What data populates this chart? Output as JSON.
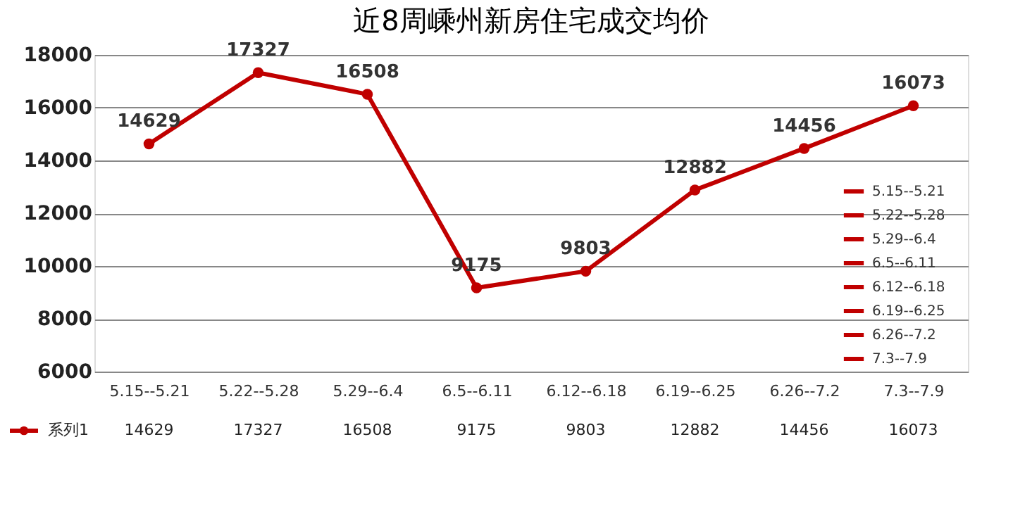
{
  "chart_data": {
    "type": "line",
    "title": "近8周嵊州新房住宅成交均价",
    "categories": [
      "5.15--5.21",
      "5.22--5.28",
      "5.29--6.4",
      "6.5--6.11",
      "6.12--6.18",
      "6.19--6.25",
      "6.26--7.2",
      "7.3--7.9"
    ],
    "series": [
      {
        "name": "系列1",
        "color": "#c00000",
        "values": [
          14629,
          17327,
          16508,
          9175,
          9803,
          12882,
          14456,
          16073
        ],
        "value_labels": [
          "14629",
          "17327",
          "16508",
          "9175",
          "9803",
          "12882",
          "14456",
          "16073"
        ]
      }
    ],
    "annotations": [
      "14629",
      "17327",
      "16508",
      "9175",
      "9803",
      "12882",
      "14456",
      "16073"
    ],
    "ylim": [
      6000,
      18000
    ],
    "yticks": [
      6000,
      8000,
      10000,
      12000,
      14000,
      16000,
      18000
    ],
    "grid": "y",
    "legend": "bottom left",
    "marker": "circle",
    "line_style": "solid"
  }
}
